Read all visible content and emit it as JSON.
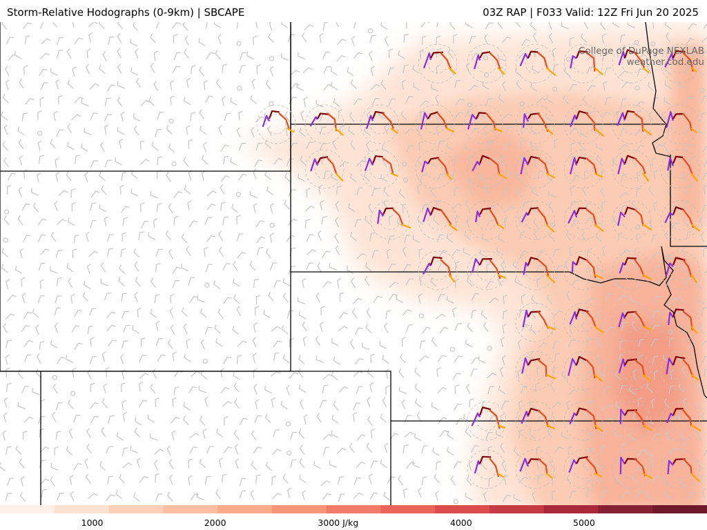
{
  "header": {
    "product_title": "Storm-Relative Hodographs (0-9km) | SBCAPE",
    "run_info": "03Z RAP | F033 Valid: 12Z Fri Jun 20 2025"
  },
  "credit": {
    "line1": "College of DuPage NEXLAB",
    "line2": "weather.cod.edu"
  },
  "colorbar": {
    "field": "SBCAPE",
    "ticks": [
      {
        "value": 1000,
        "label": "1000"
      },
      {
        "value": 2000,
        "label": "2000"
      },
      {
        "value": 3000,
        "label": "3000 J/kg"
      },
      {
        "value": 4000,
        "label": "4000"
      },
      {
        "value": 5000,
        "label": "5000"
      }
    ],
    "range": [
      250,
      6000
    ],
    "colors": [
      "#fef0e6",
      "#fde1d0",
      "#fcd0b8",
      "#fbbea0",
      "#f9aa88",
      "#f59476",
      "#f07b66",
      "#e96358",
      "#dd4c4c",
      "#c63a43",
      "#a9293a",
      "#862033",
      "#6e1a2c"
    ]
  },
  "hodograph_layer_colors": {
    "0_1km": "#7f0000",
    "1_3km": "#e84a1a",
    "3_6km": "#ffa500",
    "6_9km": "#8a2be2"
  },
  "map_colors": {
    "border": "#000000",
    "wind_barb": "#c8c8c8",
    "range_ring": "#c0c0c0"
  }
}
